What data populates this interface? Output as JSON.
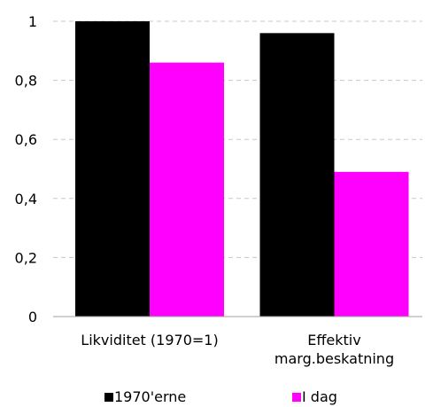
{
  "chart_data": {
    "type": "bar",
    "categories": [
      [
        "Likviditet (1970=1)"
      ],
      [
        "Effektiv",
        "marg.beskatning"
      ]
    ],
    "series": [
      {
        "name": "1970'erne",
        "color": "#000000",
        "values": [
          1.0,
          0.96
        ]
      },
      {
        "name": "I dag",
        "color": "#ff00ff",
        "values": [
          0.86,
          0.49
        ]
      }
    ],
    "yticks": [
      "0",
      "0,2",
      "0,4",
      "0,6",
      "0,8",
      "1"
    ],
    "ylim": [
      0,
      1
    ],
    "grid": true,
    "gridline_style": "dashed",
    "legend_position": "bottom"
  }
}
